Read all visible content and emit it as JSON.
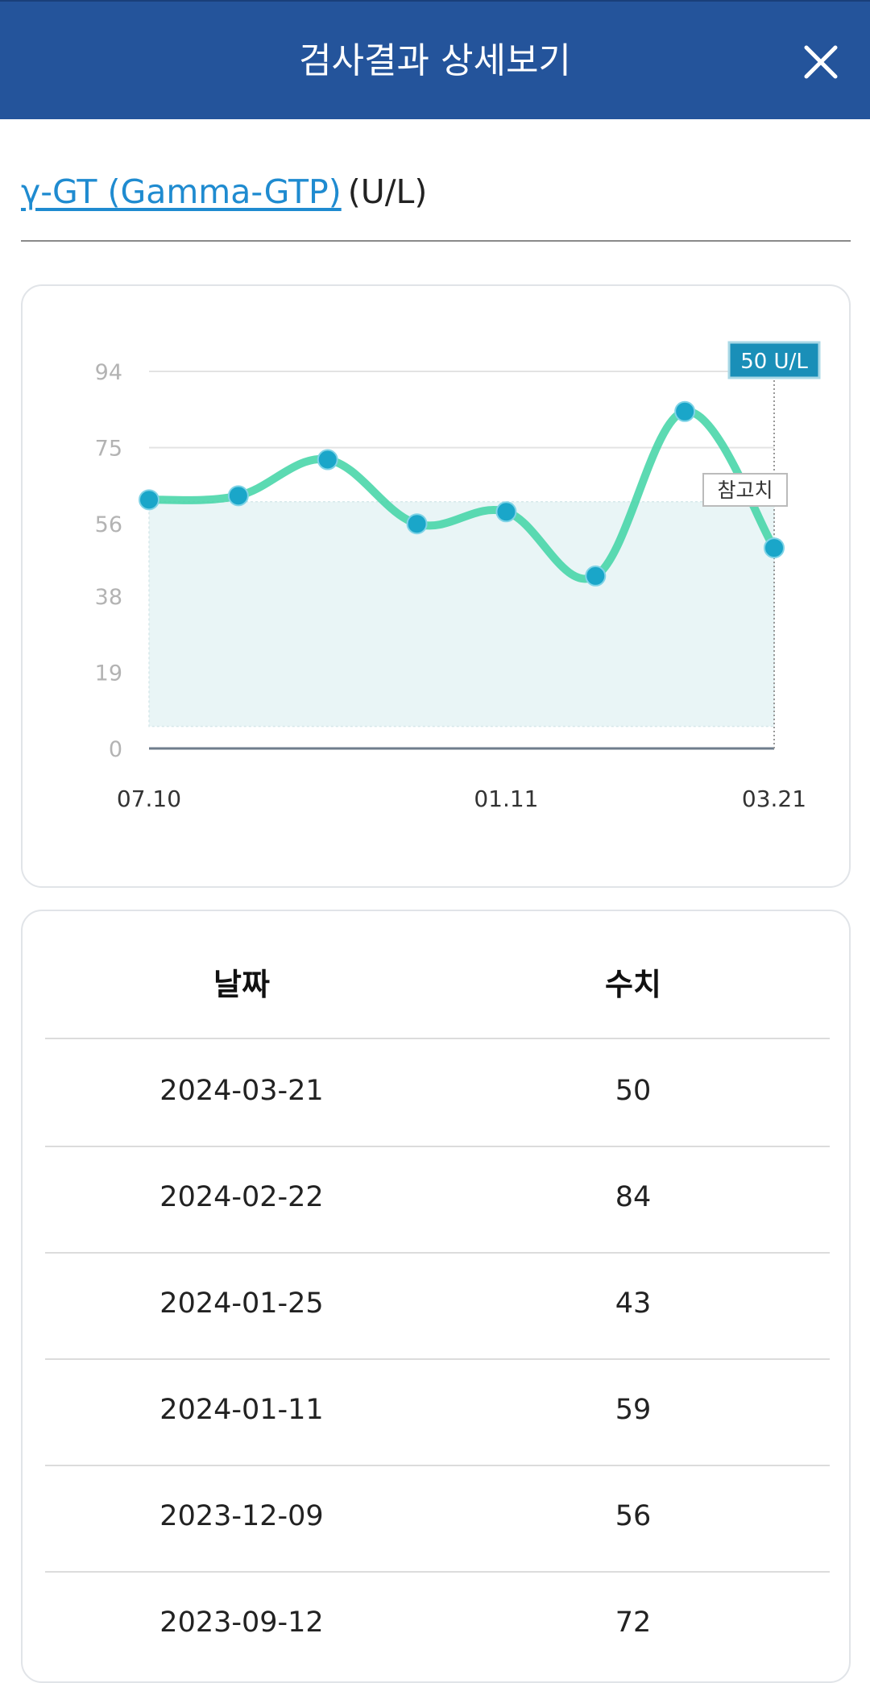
{
  "header": {
    "title": "검사결과 상세보기"
  },
  "test": {
    "name": "γ-GT (Gamma-GTP)",
    "unit": "(U/L)"
  },
  "chart_data": {
    "type": "line",
    "x": [
      "07.10",
      "",
      "",
      "",
      "01.11",
      "",
      "",
      "03.21"
    ],
    "x_tick_labels": [
      "07.10",
      "01.11",
      "03.21"
    ],
    "values": [
      62,
      63,
      72,
      56,
      59,
      43,
      84,
      50
    ],
    "y_ticks": [
      "94",
      "75",
      "56",
      "38",
      "19",
      "0"
    ],
    "ylim": [
      0,
      94
    ],
    "reference_band": [
      5.5,
      61.5
    ],
    "reference_label": "참고치",
    "tooltip_label": "50 U/L",
    "line_color": "#3fd3a5",
    "point_color": "#1aa6c9",
    "band_color": "#e9f5f6"
  },
  "table": {
    "headers": [
      "날짜",
      "수치"
    ],
    "rows": [
      {
        "date": "2024-03-21",
        "value": "50"
      },
      {
        "date": "2024-02-22",
        "value": "84"
      },
      {
        "date": "2024-01-25",
        "value": "43"
      },
      {
        "date": "2024-01-11",
        "value": "59"
      },
      {
        "date": "2023-12-09",
        "value": "56"
      },
      {
        "date": "2023-09-12",
        "value": "72"
      }
    ]
  }
}
